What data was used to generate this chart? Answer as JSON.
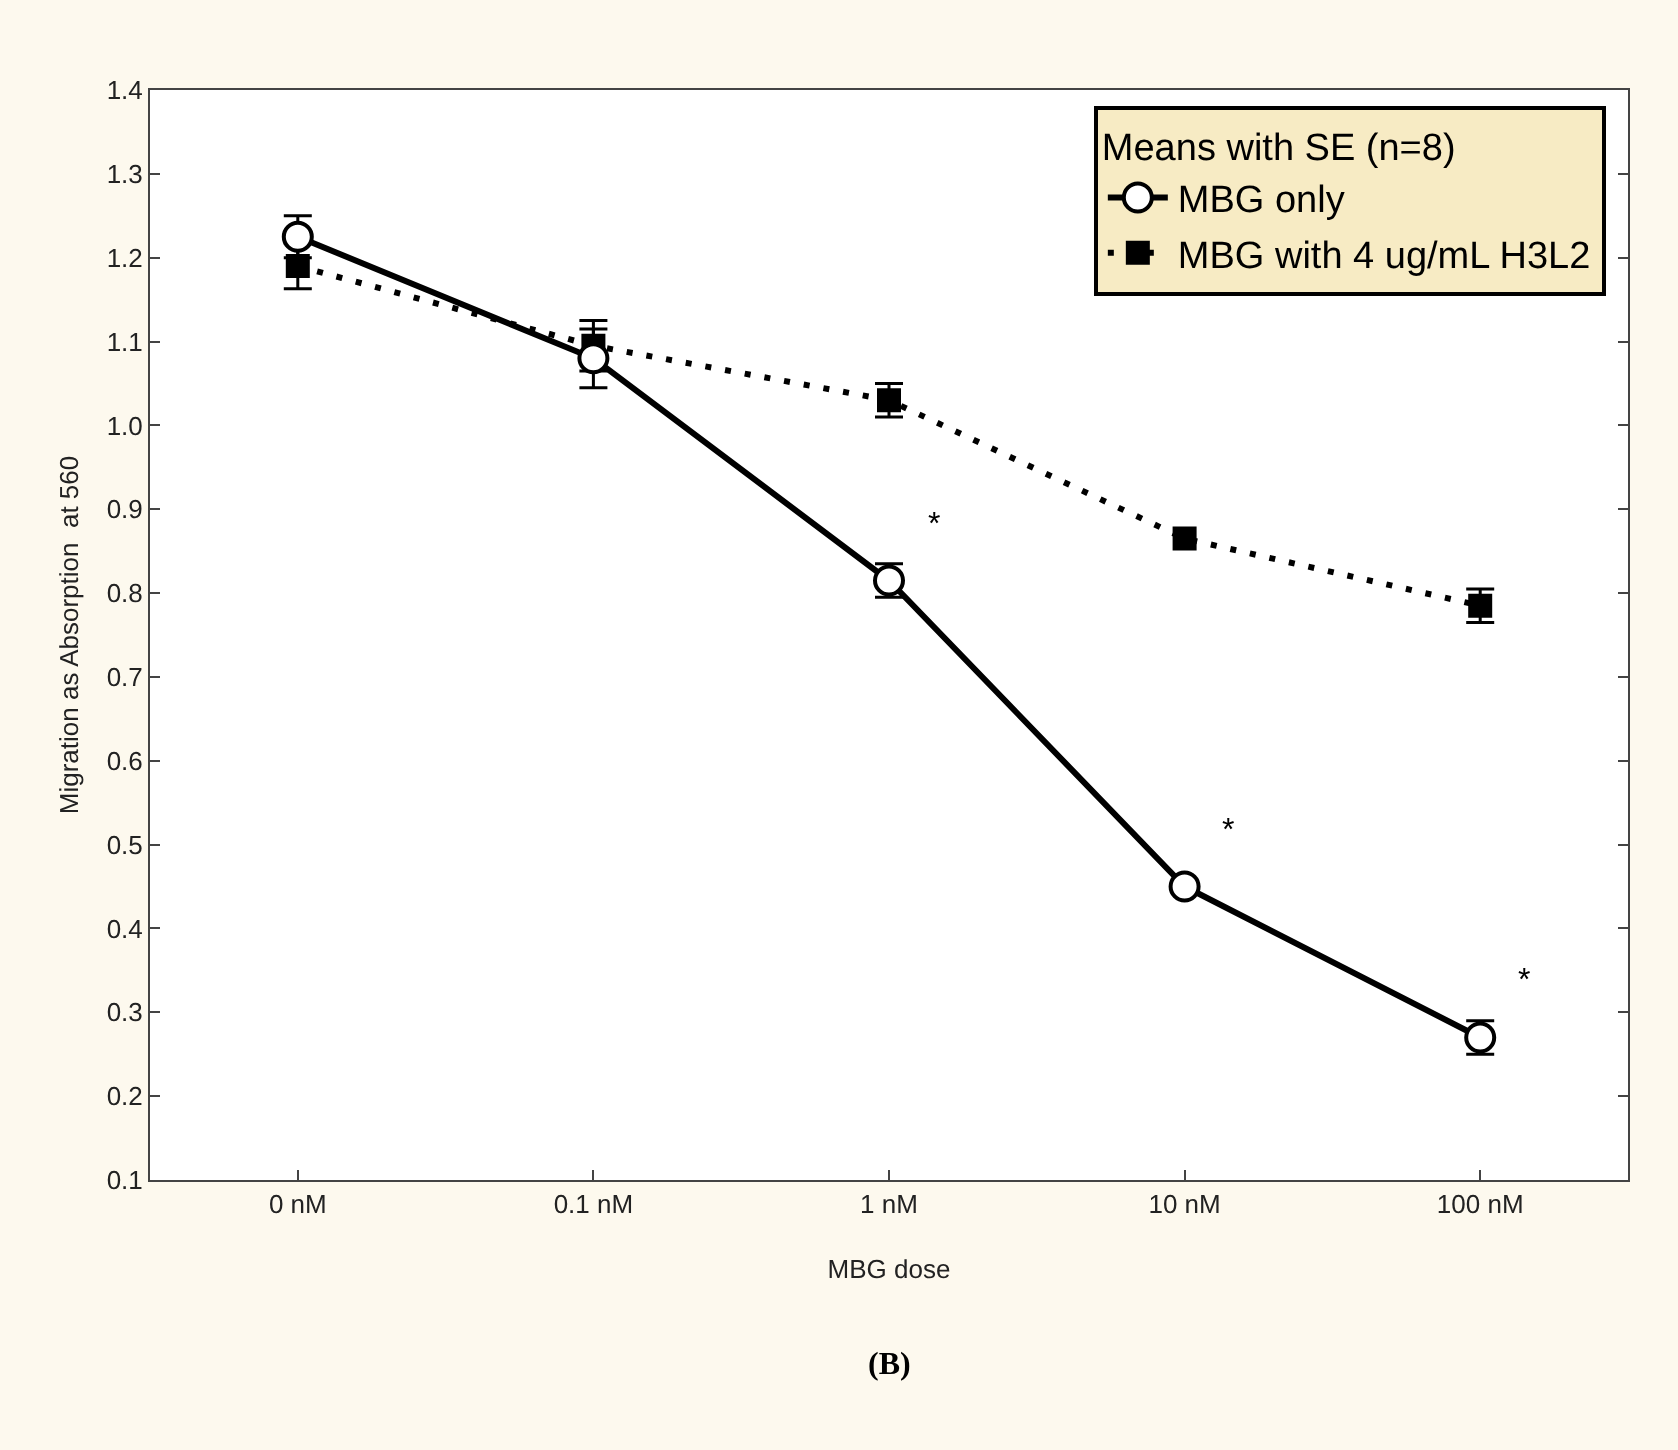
{
  "chart_data": {
    "type": "line",
    "xlabel": "MBG dose",
    "ylabel": "Migration as Absorption  at 560",
    "legend_title": "Means with SE (n=8)",
    "legend": "top right",
    "categories": [
      "0 nM",
      "0.1 nM",
      "1 nM",
      "10 nM",
      "100 nM"
    ],
    "ylim": [
      0.1,
      1.4
    ],
    "yticks": [
      {
        "value": 0.1,
        "label": "0.1"
      },
      {
        "value": 0.2,
        "label": "0.2"
      },
      {
        "value": 0.3,
        "label": "0.3"
      },
      {
        "value": 0.4,
        "label": "0.4"
      },
      {
        "value": 0.5,
        "label": "0.5"
      },
      {
        "value": 0.6,
        "label": "0.6"
      },
      {
        "value": 0.7,
        "label": "0.7"
      },
      {
        "value": 0.8,
        "label": "0.8"
      },
      {
        "value": 0.9,
        "label": "0.9"
      },
      {
        "value": 1.0,
        "label": "1.0"
      },
      {
        "value": 1.1,
        "label": "1.1"
      },
      {
        "value": 1.2,
        "label": "1.2"
      },
      {
        "value": 1.3,
        "label": "1.3"
      },
      {
        "value": 1.4,
        "label": "1.4"
      }
    ],
    "series": [
      {
        "name": "MBG only",
        "color": "#000000",
        "marker": "circle",
        "line_style": "solid",
        "values": [
          1.225,
          1.08,
          0.815,
          0.45,
          0.27
        ],
        "errors": [
          0.025,
          0.035,
          0.02,
          null,
          0.02
        ]
      },
      {
        "name": "MBG with 4 ug/mL H3L2",
        "color": "#000000",
        "marker": "square",
        "line_style": "dotted",
        "values": [
          1.19,
          1.095,
          1.03,
          0.865,
          0.785
        ],
        "errors": [
          0.027,
          0.03,
          0.02,
          null,
          0.02
        ]
      }
    ],
    "annotations": [
      {
        "text": "*",
        "x": "1 nM",
        "y": 0.815
      },
      {
        "text": "*",
        "x": "10 nM",
        "y": 0.45
      },
      {
        "text": "*",
        "x": "100 nM",
        "y": 0.27
      },
      "(B)"
    ]
  }
}
